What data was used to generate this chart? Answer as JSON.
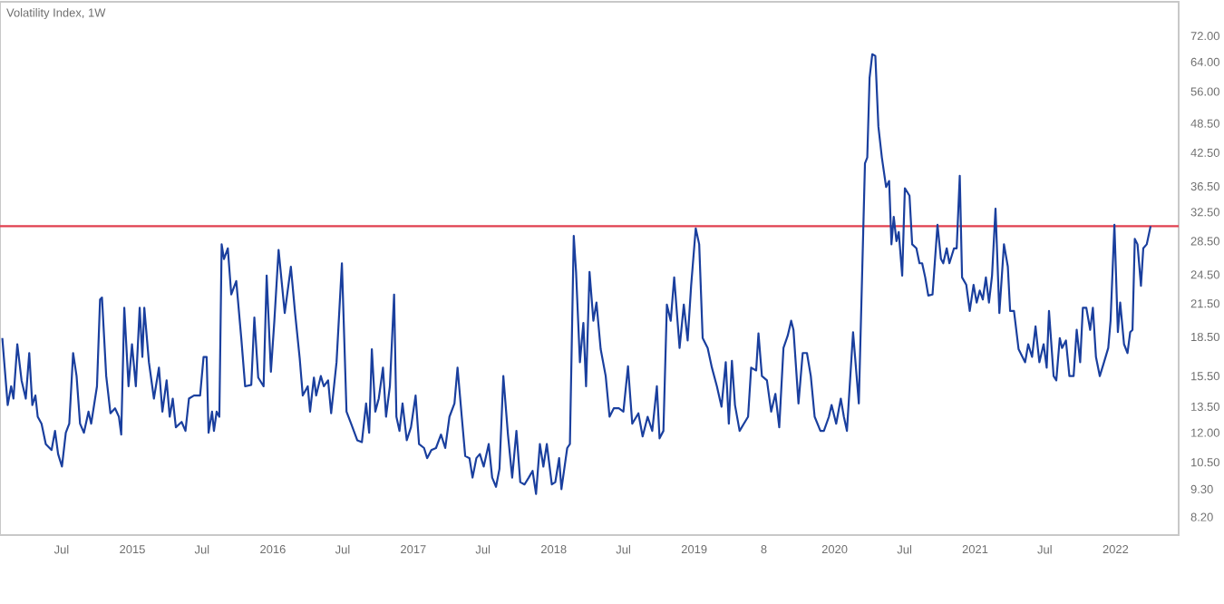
{
  "chart_data": {
    "type": "line",
    "title": "Volatility Index, 1W",
    "color": "#1a3f9e",
    "marker": "none",
    "line_style": "solid",
    "x": [
      "2014-01-28",
      "2014-02-11",
      "2014-02-20",
      "2014-02-26",
      "2014-03-08",
      "2014-03-19",
      "2014-03-30",
      "2014-04-08",
      "2014-04-16",
      "2014-04-24",
      "2014-04-30",
      "2014-05-10",
      "2014-05-21",
      "2014-06-05",
      "2014-06-14",
      "2014-06-22",
      "2014-07-02",
      "2014-07-12",
      "2014-07-21",
      "2014-07-31",
      "2014-08-09",
      "2014-08-18",
      "2014-08-28",
      "2014-09-09",
      "2014-09-16",
      "2014-10-01",
      "2014-10-09",
      "2014-10-14",
      "2014-10-25",
      "2014-11-05",
      "2014-11-17",
      "2014-11-27",
      "2014-12-03",
      "2014-12-11",
      "2014-12-22",
      "2014-12-31",
      "2015-01-10",
      "2015-01-20",
      "2015-01-27",
      "2015-02-01",
      "2015-02-13",
      "2015-02-26",
      "2015-03-11",
      "2015-03-20",
      "2015-03-31",
      "2015-04-08",
      "2015-04-16",
      "2015-04-24",
      "2015-05-09",
      "2015-05-19",
      "2015-05-28",
      "2015-06-10",
      "2015-06-26",
      "2015-07-05",
      "2015-07-13",
      "2015-07-18",
      "2015-07-27",
      "2015-08-01",
      "2015-08-08",
      "2015-08-15",
      "2015-08-21",
      "2015-08-27",
      "2015-09-06",
      "2015-09-15",
      "2015-09-28",
      "2015-10-11",
      "2015-10-21",
      "2015-11-06",
      "2015-11-14",
      "2015-11-24",
      "2015-12-08",
      "2015-12-16",
      "2015-12-27",
      "2016-01-05",
      "2016-01-16",
      "2016-02-01",
      "2016-02-17",
      "2016-02-28",
      "2016-03-11",
      "2016-03-19",
      "2016-04-01",
      "2016-04-07",
      "2016-04-17",
      "2016-04-23",
      "2016-05-05",
      "2016-05-13",
      "2016-05-24",
      "2016-06-01",
      "2016-06-15",
      "2016-06-29",
      "2016-07-11",
      "2016-07-23",
      "2016-08-08",
      "2016-08-20",
      "2016-08-31",
      "2016-09-08",
      "2016-09-15",
      "2016-09-24",
      "2016-10-03",
      "2016-10-14",
      "2016-10-22",
      "2016-11-01",
      "2016-11-12",
      "2016-11-18",
      "2016-11-26",
      "2016-12-04",
      "2016-12-15",
      "2016-12-26",
      "2017-01-07",
      "2017-01-16",
      "2017-01-29",
      "2017-02-06",
      "2017-02-17",
      "2017-03-01",
      "2017-03-14",
      "2017-03-25",
      "2017-04-05",
      "2017-04-18",
      "2017-04-26",
      "2017-05-07",
      "2017-05-16",
      "2017-05-27",
      "2017-06-04",
      "2017-06-14",
      "2017-06-23",
      "2017-07-03",
      "2017-07-16",
      "2017-07-25",
      "2017-08-04",
      "2017-08-13",
      "2017-08-23",
      "2017-09-04",
      "2017-09-15",
      "2017-09-26",
      "2017-10-06",
      "2017-10-17",
      "2017-10-28",
      "2017-11-07",
      "2017-11-16",
      "2017-11-26",
      "2017-12-05",
      "2017-12-14",
      "2017-12-27",
      "2018-01-05",
      "2018-01-15",
      "2018-01-21",
      "2018-02-05",
      "2018-02-12",
      "2018-02-22",
      "2018-02-28",
      "2018-03-10",
      "2018-03-19",
      "2018-03-26",
      "2018-04-04",
      "2018-04-14",
      "2018-04-22",
      "2018-05-03",
      "2018-05-16",
      "2018-05-26",
      "2018-06-06",
      "2018-06-19",
      "2018-07-01",
      "2018-07-13",
      "2018-07-24",
      "2018-08-09",
      "2018-08-20",
      "2018-09-02",
      "2018-09-14",
      "2018-09-26",
      "2018-10-03",
      "2018-10-13",
      "2018-10-22",
      "2018-11-01",
      "2018-11-10",
      "2018-11-24",
      "2018-12-05",
      "2018-12-15",
      "2018-12-24",
      "2019-01-05",
      "2019-01-14",
      "2019-01-23",
      "2019-02-05",
      "2019-02-16",
      "2019-03-01",
      "2019-03-13",
      "2019-03-24",
      "2019-04-01",
      "2019-04-09",
      "2019-04-17",
      "2019-04-29",
      "2019-05-10",
      "2019-05-21",
      "2019-05-29",
      "2019-06-11",
      "2019-06-17",
      "2019-06-26",
      "2019-07-09",
      "2019-07-20",
      "2019-07-31",
      "2019-08-10",
      "2019-08-21",
      "2019-09-01",
      "2019-09-10",
      "2019-09-16",
      "2019-09-29",
      "2019-10-10",
      "2019-10-21",
      "2019-10-31",
      "2019-11-10",
      "2019-11-25",
      "2019-12-04",
      "2019-12-17",
      "2019-12-24",
      "2020-01-05",
      "2020-01-17",
      "2020-01-25",
      "2020-02-02",
      "2020-02-18",
      "2020-03-04",
      "2020-03-20",
      "2020-03-26",
      "2020-04-01",
      "2020-04-08",
      "2020-04-16",
      "2020-04-24",
      "2020-05-03",
      "2020-05-14",
      "2020-05-22",
      "2020-05-28",
      "2020-06-03",
      "2020-06-10",
      "2020-06-16",
      "2020-06-25",
      "2020-07-02",
      "2020-07-14",
      "2020-07-21",
      "2020-08-01",
      "2020-08-09",
      "2020-08-16",
      "2020-08-24",
      "2020-09-01",
      "2020-09-12",
      "2020-09-25",
      "2020-10-04",
      "2020-10-10",
      "2020-10-19",
      "2020-10-26",
      "2020-11-07",
      "2020-11-14",
      "2020-11-22",
      "2020-11-28",
      "2020-12-09",
      "2020-12-18",
      "2020-12-28",
      "2021-01-05",
      "2021-01-13",
      "2021-01-21",
      "2021-01-29",
      "2021-02-06",
      "2021-02-14",
      "2021-02-23",
      "2021-03-05",
      "2021-03-17",
      "2021-03-27",
      "2021-04-02",
      "2021-04-12",
      "2021-04-24",
      "2021-05-11",
      "2021-05-19",
      "2021-05-29",
      "2021-06-07",
      "2021-06-17",
      "2021-06-28",
      "2021-07-06",
      "2021-07-12",
      "2021-07-24",
      "2021-07-31",
      "2021-08-09",
      "2021-08-15",
      "2021-08-25",
      "2021-09-03",
      "2021-09-14",
      "2021-09-22",
      "2021-10-01",
      "2021-10-08",
      "2021-10-17",
      "2021-10-27",
      "2021-11-03",
      "2021-11-11",
      "2021-11-21",
      "2021-12-02",
      "2021-12-13",
      "2021-12-19",
      "2021-12-29",
      "2022-01-07",
      "2022-01-13",
      "2022-01-23",
      "2022-02-01",
      "2022-02-08",
      "2022-02-14",
      "2022-02-20",
      "2022-02-27",
      "2022-03-08",
      "2022-03-14",
      "2022-03-23",
      "2022-04-02"
    ],
    "values": [
      18.4,
      13.6,
      14.8,
      14.0,
      17.9,
      15.2,
      14.0,
      17.2,
      13.6,
      14.2,
      12.9,
      12.5,
      11.4,
      11.1,
      12.1,
      10.9,
      10.3,
      12.0,
      12.5,
      17.2,
      15.5,
      12.5,
      12.0,
      13.2,
      12.5,
      14.8,
      21.9,
      22.1,
      15.5,
      13.1,
      13.4,
      12.9,
      11.9,
      21.1,
      14.8,
      17.9,
      14.8,
      21.1,
      16.9,
      21.1,
      16.5,
      14.0,
      16.1,
      13.2,
      15.2,
      12.9,
      14.0,
      12.3,
      12.6,
      12.1,
      14.0,
      14.2,
      14.2,
      16.9,
      16.9,
      12.0,
      13.2,
      12.1,
      13.2,
      12.9,
      28.1,
      26.3,
      27.6,
      22.4,
      23.8,
      18.4,
      14.8,
      14.9,
      20.2,
      15.4,
      14.8,
      24.4,
      15.8,
      19.9,
      27.4,
      20.6,
      25.4,
      20.6,
      16.8,
      14.2,
      14.8,
      13.2,
      15.4,
      14.2,
      15.5,
      14.8,
      15.2,
      13.1,
      16.5,
      25.8,
      13.2,
      12.5,
      11.6,
      11.5,
      13.7,
      12.0,
      17.5,
      13.2,
      14.0,
      16.1,
      12.9,
      14.8,
      22.4,
      12.9,
      12.1,
      13.7,
      11.6,
      12.3,
      14.2,
      11.4,
      11.2,
      10.7,
      11.1,
      11.2,
      11.9,
      11.2,
      12.9,
      13.7,
      16.1,
      12.9,
      10.8,
      10.7,
      9.8,
      10.7,
      10.9,
      10.3,
      11.4,
      9.8,
      9.4,
      10.2,
      15.5,
      11.9,
      9.8,
      12.1,
      9.6,
      9.5,
      9.8,
      10.1,
      9.1,
      11.4,
      10.3,
      11.4,
      9.5,
      9.6,
      10.7,
      9.3,
      11.2,
      11.4,
      29.2,
      24.8,
      16.5,
      19.7,
      14.8,
      24.8,
      19.9,
      21.6,
      17.5,
      15.5,
      12.9,
      13.4,
      13.4,
      13.2,
      16.2,
      12.5,
      13.1,
      11.8,
      12.9,
      12.1,
      14.8,
      11.7,
      12.1,
      21.4,
      19.9,
      24.2,
      17.6,
      21.4,
      18.2,
      23.3,
      30.2,
      28.1,
      18.4,
      17.6,
      16.1,
      14.8,
      13.5,
      16.5,
      12.5,
      16.6,
      13.6,
      12.1,
      12.5,
      12.9,
      16.1,
      15.9,
      18.8,
      15.5,
      15.2,
      13.2,
      14.3,
      12.3,
      17.6,
      18.6,
      19.9,
      19.1,
      13.7,
      17.2,
      17.2,
      15.5,
      12.9,
      12.1,
      12.1,
      12.9,
      13.6,
      12.5,
      14.0,
      12.9,
      12.1,
      18.9,
      13.7,
      40.5,
      41.6,
      59.6,
      66.3,
      65.8,
      47.8,
      41.6,
      36.4,
      37.4,
      28.1,
      31.8,
      28.5,
      29.7,
      24.4,
      36.2,
      35.0,
      28.1,
      27.6,
      25.8,
      25.8,
      24.2,
      22.3,
      22.4,
      30.7,
      26.3,
      25.8,
      27.6,
      25.8,
      27.6,
      27.6,
      38.3,
      24.2,
      23.4,
      20.8,
      23.4,
      21.6,
      22.8,
      21.9,
      24.2,
      21.6,
      24.4,
      33.0,
      20.6,
      28.1,
      25.4,
      20.8,
      20.8,
      17.5,
      16.5,
      17.9,
      16.9,
      19.4,
      16.5,
      17.9,
      16.1,
      20.8,
      15.5,
      15.2,
      18.4,
      17.6,
      18.2,
      15.5,
      15.5,
      19.1,
      16.5,
      21.1,
      21.1,
      19.1,
      21.1,
      16.9,
      15.5,
      16.5,
      17.6,
      19.9,
      30.7,
      18.9,
      21.6,
      17.9,
      17.2,
      18.9,
      19.1,
      28.8,
      28.1,
      23.3,
      27.6,
      28.1,
      30.5
    ],
    "xlim": [
      "2014-01-22",
      "2022-06-14"
    ],
    "log": "y",
    "ylim": [
      7.56,
      84
    ],
    "yticks": [
      {
        "value": 8.2,
        "label": "8.20"
      },
      {
        "value": 9.3,
        "label": "9.30"
      },
      {
        "value": 10.5,
        "label": "10.50"
      },
      {
        "value": 12,
        "label": "12.00"
      },
      {
        "value": 13.5,
        "label": "13.50"
      },
      {
        "value": 15.5,
        "label": "15.50"
      },
      {
        "value": 18.5,
        "label": "18.50"
      },
      {
        "value": 21.5,
        "label": "21.50"
      },
      {
        "value": 24.5,
        "label": "24.50"
      },
      {
        "value": 28.5,
        "label": "28.50"
      },
      {
        "value": 32.5,
        "label": "32.50"
      },
      {
        "value": 36.5,
        "label": "36.50"
      },
      {
        "value": 42.5,
        "label": "42.50"
      },
      {
        "value": 48.5,
        "label": "48.50"
      },
      {
        "value": 56,
        "label": "56.00"
      },
      {
        "value": 64,
        "label": "64.00"
      },
      {
        "value": 72,
        "label": "72.00"
      }
    ],
    "xticks": [
      {
        "value": "2014-07",
        "label": "Jul"
      },
      {
        "value": "2015-01",
        "label": "2015"
      },
      {
        "value": "2015-07",
        "label": "Jul"
      },
      {
        "value": "2016-01",
        "label": "2016"
      },
      {
        "value": "2016-07",
        "label": "Jul"
      },
      {
        "value": "2017-01",
        "label": "2017"
      },
      {
        "value": "2017-07",
        "label": "Jul"
      },
      {
        "value": "2018-01",
        "label": "2018"
      },
      {
        "value": "2018-07",
        "label": "Jul"
      },
      {
        "value": "2019-01",
        "label": "2019"
      },
      {
        "value": "2019-07",
        "label": "8"
      },
      {
        "value": "2020-01",
        "label": "2020"
      },
      {
        "value": "2020-07",
        "label": "Jul"
      },
      {
        "value": "2021-01",
        "label": "2021"
      },
      {
        "value": "2021-07",
        "label": "Jul"
      },
      {
        "value": "2022-01",
        "label": "2022"
      }
    ],
    "ref_lines": [
      {
        "axis": "y",
        "value": 30.5,
        "color": "#e0404f",
        "line_style": "solid"
      }
    ]
  }
}
